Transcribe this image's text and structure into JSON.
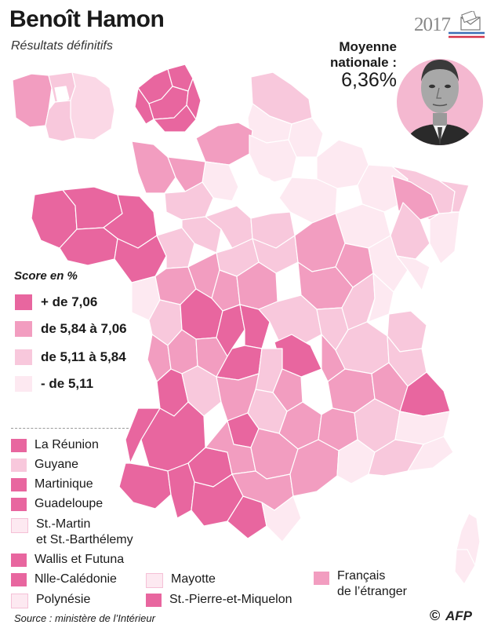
{
  "header": {
    "title": "Benoît Hamon",
    "subtitle": "Résultats définitifs",
    "election_year": "2017"
  },
  "national_average": {
    "label": "Moyenne nationale :",
    "value": "6,36%"
  },
  "legend": {
    "title": "Score en %",
    "classes": [
      {
        "label": "+ de 7,06",
        "color": "#e8669f"
      },
      {
        "label": "de 5,84 à 7,06",
        "color": "#f29dc0"
      },
      {
        "label": "de 5,11 à 5,84",
        "color": "#f8c8dc"
      },
      {
        "label": "- de 5,11",
        "color": "#fde9f1"
      }
    ]
  },
  "territories": [
    {
      "name": "La Réunion",
      "color": "#e8669f"
    },
    {
      "name": "Guyane",
      "color": "#f8c8dc"
    },
    {
      "name": "Martinique",
      "color": "#e8669f"
    },
    {
      "name": "Guadeloupe",
      "color": "#e8669f"
    },
    {
      "name": "St.-Martin et St.-Barthélemy",
      "line1": "St.-Martin",
      "line2": "et St.-Barthélemy",
      "color": "#fde9f1"
    },
    {
      "name": "Wallis et Futuna",
      "color": "#e8669f"
    },
    {
      "name": "Nlle-Calédonie",
      "color": "#e8669f"
    },
    {
      "name": "Polynésie",
      "color": "#fde9f1"
    },
    {
      "name": "Mayotte",
      "color": "#fde9f1"
    },
    {
      "name": "St.-Pierre-et-Miquelon",
      "color": "#e8669f"
    },
    {
      "name": "Français de l'étranger",
      "line1": "Français",
      "line2": "de l’étranger",
      "color": "#f29dc0"
    }
  ],
  "footer": {
    "source": "Source : ministère de l’Intérieur",
    "copyright": "©",
    "agency": "AFP"
  },
  "icons": [
    "ballot-envelope-icon",
    "portrait-photo"
  ]
}
